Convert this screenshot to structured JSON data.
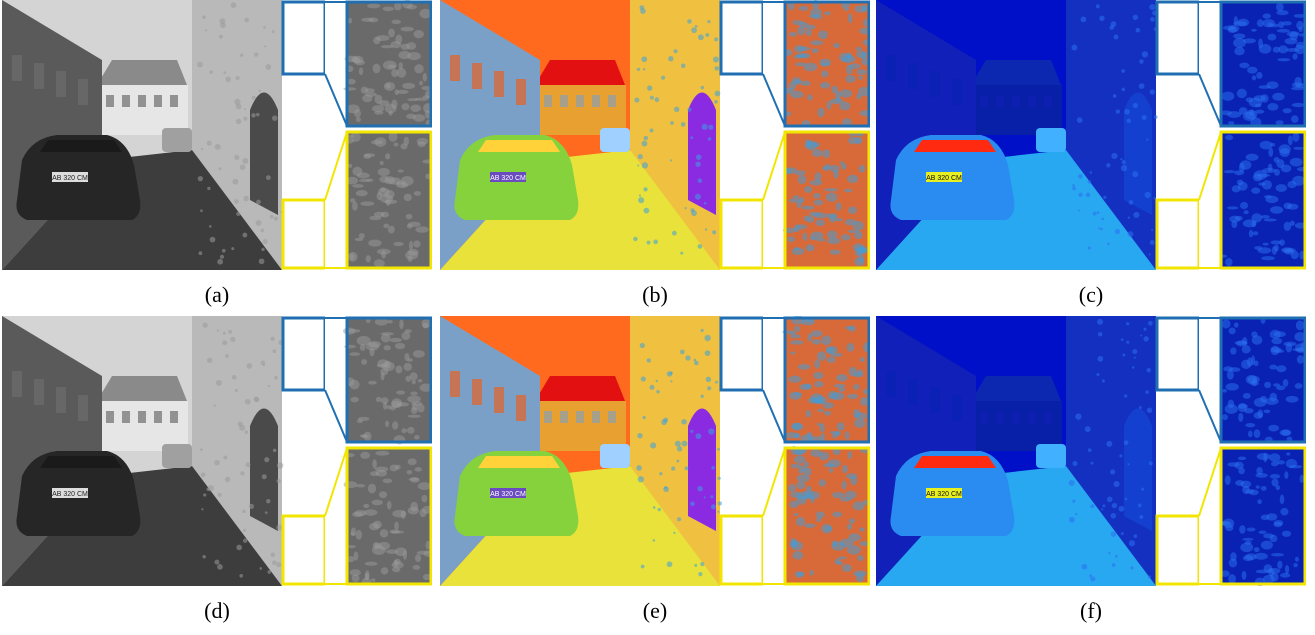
{
  "panels": [
    {
      "id": "a",
      "label": "(a)",
      "style": "gray"
    },
    {
      "id": "b",
      "label": "(b)",
      "style": "hue"
    },
    {
      "id": "c",
      "label": "(c)",
      "style": "jet"
    },
    {
      "id": "d",
      "label": "(d)",
      "style": "gray"
    },
    {
      "id": "e",
      "label": "(e)",
      "style": "hue"
    },
    {
      "id": "f",
      "label": "(f)",
      "style": "jet"
    }
  ],
  "plate_text": "AB 320 CM",
  "colors": {
    "zoom_box_top": "#1f6fb2",
    "zoom_box_bottom": "#f2e600",
    "background": "#ffffff"
  }
}
